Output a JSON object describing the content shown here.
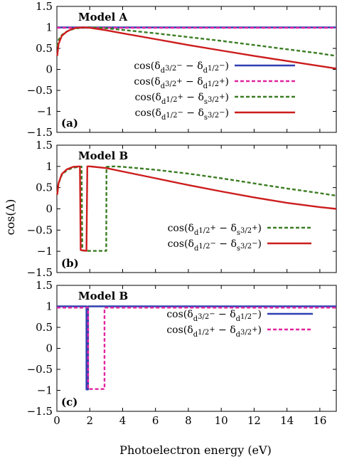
{
  "figure": {
    "xlabel": "Photoelectron energy (eV)",
    "ylabel": "cos(Δ)"
  },
  "colors": {
    "blue": "#2f3fb2",
    "magenta": "#e0259f",
    "green": "#3b7d23",
    "red": "#cc1d1d"
  },
  "chart_data": [
    {
      "type": "line",
      "panel_label": "(a)",
      "title": "Model A",
      "xlabel": "",
      "ylabel": "",
      "xlim": [
        0,
        17
      ],
      "ylim": [
        -1.5,
        1.5
      ],
      "x_ticks": [
        "0",
        "2",
        "4",
        "6",
        "8",
        "10",
        "12",
        "14",
        "16"
      ],
      "y_ticks": [
        "1.5",
        "1",
        "0.5",
        "0",
        "−0.5",
        "−1",
        "−1.5"
      ],
      "legend_position": "center-right",
      "series": [
        {
          "name": "cos(δ_{d3/2}^{−} − δ_{d1/2}^{−})",
          "legend_parts": [
            "cos(δ",
            "d",
            "3/2",
            "−",
            " − δ",
            "d",
            "1/2",
            "−",
            ")"
          ],
          "color": "blue",
          "style": "solid",
          "points": [
            [
              0,
              1.0
            ],
            [
              17,
              1.0
            ]
          ]
        },
        {
          "name": "cos(δ_{d3/2}^{+} − δ_{d1/2}^{+})",
          "legend_parts": [
            "cos(δ",
            "d",
            "3/2",
            "+",
            " − δ",
            "d",
            "1/2",
            "+",
            ")"
          ],
          "color": "magenta",
          "style": "dashed",
          "points": [
            [
              0,
              0.99
            ],
            [
              17,
              0.99
            ]
          ]
        },
        {
          "name": "cos(δ_{d1/2}^{+} − δ_{s3/2}^{+})",
          "legend_parts": [
            "cos(δ",
            "d",
            "1/2",
            "+",
            " − δ",
            "s",
            "3/2",
            "+",
            ")"
          ],
          "color": "green",
          "style": "dashed",
          "points": [
            [
              0.02,
              0.55
            ],
            [
              0.1,
              0.7
            ],
            [
              0.25,
              0.8
            ],
            [
              0.5,
              0.88
            ],
            [
              0.8,
              0.94
            ],
            [
              1.2,
              0.98
            ],
            [
              1.6,
              0.99
            ],
            [
              2.0,
              1.0
            ],
            [
              2.5,
              0.995
            ],
            [
              3.0,
              0.98
            ],
            [
              4.0,
              0.94
            ],
            [
              6.0,
              0.86
            ],
            [
              8.0,
              0.77
            ],
            [
              10.0,
              0.68
            ],
            [
              12.0,
              0.58
            ],
            [
              14.0,
              0.48
            ],
            [
              16.0,
              0.38
            ],
            [
              17.0,
              0.32
            ]
          ]
        },
        {
          "name": "cos(δ_{d1/2}^{−} − δ_{s3/2}^{−})",
          "legend_parts": [
            "cos(δ",
            "d",
            "1/2",
            "−",
            " − δ",
            "s",
            "3/2",
            "−",
            ")"
          ],
          "color": "red",
          "style": "solid",
          "points": [
            [
              0.02,
              0.32
            ],
            [
              0.1,
              0.6
            ],
            [
              0.3,
              0.8
            ],
            [
              0.6,
              0.9
            ],
            [
              0.9,
              0.96
            ],
            [
              1.2,
              0.99
            ],
            [
              1.6,
              1.0
            ],
            [
              2.0,
              0.99
            ],
            [
              3.0,
              0.93
            ],
            [
              4.0,
              0.86
            ],
            [
              6.0,
              0.72
            ],
            [
              8.0,
              0.58
            ],
            [
              10.0,
              0.45
            ],
            [
              12.0,
              0.32
            ],
            [
              14.0,
              0.2
            ],
            [
              16.0,
              0.08
            ],
            [
              17.0,
              0.02
            ]
          ]
        }
      ]
    },
    {
      "type": "line",
      "panel_label": "(b)",
      "title": "Model B",
      "xlabel": "",
      "ylabel": "",
      "xlim": [
        0,
        17
      ],
      "ylim": [
        -1.5,
        1.5
      ],
      "x_ticks": [
        "0",
        "2",
        "4",
        "6",
        "8",
        "10",
        "12",
        "14",
        "16"
      ],
      "y_ticks": [
        "1.5",
        "1",
        "0.5",
        "0",
        "−0.5",
        "−1",
        "−1.5"
      ],
      "legend_position": "lower-right",
      "series": [
        {
          "name": "cos(δ_{d1/2}^{+} − δ_{s3/2}^{+})",
          "legend_parts": [
            "cos(δ",
            "d",
            "1/2",
            "+",
            " − δ",
            "s",
            "3/2",
            "+",
            ")"
          ],
          "color": "green",
          "style": "dashed",
          "points": [
            [
              0.02,
              0.35
            ],
            [
              0.1,
              0.6
            ],
            [
              0.3,
              0.8
            ],
            [
              0.6,
              0.91
            ],
            [
              1.0,
              0.97
            ],
            [
              1.5,
              0.995
            ],
            [
              1.55,
              -0.98
            ],
            [
              2.0,
              -0.99
            ],
            [
              2.5,
              -0.99
            ],
            [
              3.0,
              -0.99
            ],
            [
              3.02,
              0.99
            ],
            [
              3.5,
              1.0
            ],
            [
              4.0,
              0.99
            ],
            [
              6.0,
              0.92
            ],
            [
              8.0,
              0.83
            ],
            [
              10.0,
              0.72
            ],
            [
              12.0,
              0.6
            ],
            [
              14.0,
              0.48
            ],
            [
              16.0,
              0.37
            ],
            [
              17.0,
              0.31
            ]
          ]
        },
        {
          "name": "cos(δ_{d1/2}^{−} − δ_{s3/2}^{−})",
          "legend_parts": [
            "cos(δ",
            "d",
            "1/2",
            "−",
            " − δ",
            "s",
            "3/2",
            "−",
            ")"
          ],
          "color": "red",
          "style": "solid",
          "points": [
            [
              0.02,
              0.33
            ],
            [
              0.1,
              0.6
            ],
            [
              0.3,
              0.82
            ],
            [
              0.6,
              0.93
            ],
            [
              1.0,
              0.99
            ],
            [
              1.4,
              1.0
            ],
            [
              1.45,
              -0.97
            ],
            [
              1.8,
              -0.99
            ],
            [
              1.85,
              1.0
            ],
            [
              2.0,
              1.0
            ],
            [
              3.0,
              0.96
            ],
            [
              4.0,
              0.88
            ],
            [
              6.0,
              0.72
            ],
            [
              8.0,
              0.56
            ],
            [
              10.0,
              0.41
            ],
            [
              12.0,
              0.27
            ],
            [
              14.0,
              0.14
            ],
            [
              16.0,
              0.04
            ],
            [
              17.0,
              0.0
            ]
          ]
        }
      ]
    },
    {
      "type": "line",
      "panel_label": "(c)",
      "title": "Model B",
      "xlabel": "Photoelectron energy (eV)",
      "ylabel": "",
      "xlim": [
        0,
        17
      ],
      "ylim": [
        -1.5,
        1.5
      ],
      "x_ticks": [
        "0",
        "2",
        "4",
        "6",
        "8",
        "10",
        "12",
        "14",
        "16"
      ],
      "y_ticks": [
        "1.5",
        "1",
        "0.5",
        "0",
        "−0.5",
        "−1",
        "−1.5"
      ],
      "legend_position": "center-right",
      "series": [
        {
          "name": "cos(δ_{d3/2}^{−} − δ_{d1/2}^{−})",
          "legend_parts": [
            "cos(δ",
            "d",
            "3/2",
            "−",
            " − δ",
            "d",
            "1/2",
            "−",
            ")"
          ],
          "color": "blue",
          "style": "solid",
          "points": [
            [
              0,
              1.0
            ],
            [
              1.8,
              1.0
            ],
            [
              1.8,
              -0.98
            ],
            [
              1.9,
              -0.98
            ],
            [
              1.9,
              1.0
            ],
            [
              17,
              1.0
            ]
          ]
        },
        {
          "name": "cos(δ_{d1/2}^{+} − δ_{d3/2}^{+})",
          "legend_parts": [
            "cos(δ",
            "d",
            "1/2",
            "+",
            " − δ",
            "d",
            "3/2",
            "+",
            ")"
          ],
          "color": "magenta",
          "style": "dashed",
          "points": [
            [
              0,
              0.97
            ],
            [
              1.9,
              0.97
            ],
            [
              1.9,
              -0.97
            ],
            [
              2.9,
              -0.97
            ],
            [
              2.9,
              0.97
            ],
            [
              17,
              0.97
            ]
          ]
        }
      ]
    }
  ]
}
